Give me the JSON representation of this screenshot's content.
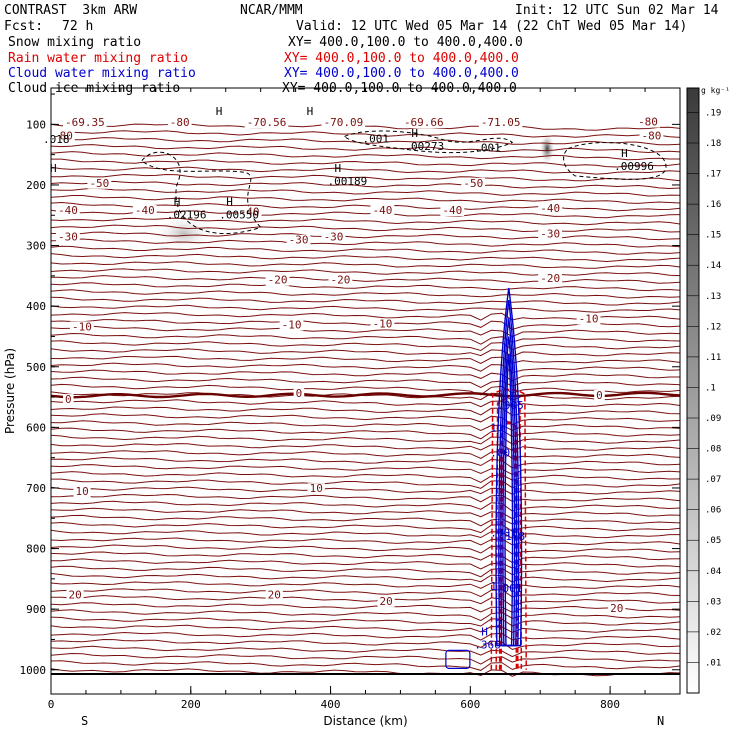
{
  "header": {
    "model": "CONTRAST  3km ARW",
    "center": "NCAR/MMM",
    "init": "Init: 12 UTC Sun 02 Mar 14",
    "fcst_label": "Fcst:",
    "fcst_value": "72 h",
    "valid": "Valid: 12 UTC Wed 05 Mar 14 (22 ChT Wed 05 Mar 14)"
  },
  "fields": [
    {
      "name": "Snow mixing ratio",
      "xy": "XY= 400.0,100.0 to 400.0,400.0",
      "color": "#000000"
    },
    {
      "name": "Rain water mixing ratio",
      "xy": "XY= 400.0,100.0 to 400.0,400.0",
      "color": "#dd0000"
    },
    {
      "name": "Cloud water mixing ratio",
      "xy": "XY= 400.0,100.0 to 400.0,400.0",
      "color": "#0000cc"
    },
    {
      "name": "Cloud ice mixing ratio",
      "xy": "XY= 400.0,100.0 to 400.0,400.0",
      "color": "#000000"
    }
  ],
  "colors": {
    "temperature": "#7a1010",
    "zero_isotherm": "#6a0000",
    "rain": "#dd0000",
    "cloud_water": "#0000cc",
    "ice": "#000000"
  },
  "chart_data": {
    "type": "contour-cross-section",
    "xlabel": "Distance (km)",
    "ylabel": "Pressure (hPa)",
    "xlim": [
      0,
      900
    ],
    "ylim": [
      1040,
      40
    ],
    "x_ticks": [
      0,
      200,
      400,
      600,
      800
    ],
    "y_ticks": [
      100,
      200,
      300,
      400,
      500,
      600,
      700,
      800,
      900,
      1000
    ],
    "end_labels": {
      "left": "S",
      "right": "N"
    },
    "colorbar": {
      "unit": "g kg⁻¹",
      "ticks": [
        ".01",
        ".02",
        ".03",
        ".04",
        ".05",
        ".06",
        ".07",
        ".08",
        ".09",
        ".1",
        ".11",
        ".12",
        ".13",
        ".14",
        ".15",
        ".16",
        ".17",
        ".18",
        ".19"
      ]
    },
    "temperature_labels": [
      {
        "x": 20,
        "p": 103,
        "text": "-69.35"
      },
      {
        "x": 170,
        "p": 103,
        "text": "-80"
      },
      {
        "x": 280,
        "p": 103,
        "text": "-70.56"
      },
      {
        "x": 390,
        "p": 103,
        "text": "-70.09"
      },
      {
        "x": 505,
        "p": 103,
        "text": "-69.66"
      },
      {
        "x": 615,
        "p": 103,
        "text": "-71.05"
      },
      {
        "x": 840,
        "p": 102,
        "text": "-80"
      },
      {
        "x": 0,
        "p": 125,
        "text": "-80"
      },
      {
        "x": 845,
        "p": 125,
        "text": "-80"
      },
      {
        "x": 55,
        "p": 203,
        "text": "-50"
      },
      {
        "x": 590,
        "p": 203,
        "text": "-50"
      },
      {
        "x": 10,
        "p": 248,
        "text": "-40"
      },
      {
        "x": 120,
        "p": 248,
        "text": "-40"
      },
      {
        "x": 270,
        "p": 250,
        "text": "-40"
      },
      {
        "x": 460,
        "p": 248,
        "text": "-40"
      },
      {
        "x": 560,
        "p": 248,
        "text": "-40"
      },
      {
        "x": 700,
        "p": 245,
        "text": "-40"
      },
      {
        "x": 10,
        "p": 292,
        "text": "-30"
      },
      {
        "x": 390,
        "p": 292,
        "text": "-30"
      },
      {
        "x": 700,
        "p": 287,
        "text": "-30"
      },
      {
        "x": 340,
        "p": 297,
        "text": "-30"
      },
      {
        "x": 400,
        "p": 363,
        "text": "-20"
      },
      {
        "x": 310,
        "p": 363,
        "text": "-20"
      },
      {
        "x": 700,
        "p": 360,
        "text": "-20"
      },
      {
        "x": 30,
        "p": 440,
        "text": "-10"
      },
      {
        "x": 330,
        "p": 437,
        "text": "-10"
      },
      {
        "x": 460,
        "p": 435,
        "text": "-10"
      },
      {
        "x": 755,
        "p": 427,
        "text": "-10"
      },
      {
        "x": 20,
        "p": 560,
        "text": "0"
      },
      {
        "x": 350,
        "p": 550,
        "text": "0"
      },
      {
        "x": 780,
        "p": 553,
        "text": "0"
      },
      {
        "x": 35,
        "p": 712,
        "text": "10"
      },
      {
        "x": 370,
        "p": 707,
        "text": "10"
      },
      {
        "x": 25,
        "p": 882,
        "text": "20"
      },
      {
        "x": 310,
        "p": 882,
        "text": "20"
      },
      {
        "x": 470,
        "p": 893,
        "text": "20"
      },
      {
        "x": 800,
        "p": 905,
        "text": "20"
      }
    ],
    "extrema": [
      {
        "x": 240,
        "p": 101,
        "kind": "H",
        "value": ""
      },
      {
        "x": 370,
        "p": 101,
        "kind": "H",
        "value": ""
      },
      {
        "x": 0,
        "p": 126,
        "kind": "",
        "value": ".018"
      },
      {
        "x": 460,
        "p": 125,
        "kind": "",
        "value": ".001"
      },
      {
        "x": 520,
        "p": 137,
        "kind": "H",
        "value": ".00273"
      },
      {
        "x": 620,
        "p": 140,
        "kind": "",
        "value": ".001"
      },
      {
        "x": 820,
        "p": 170,
        "kind": "H",
        "value": ".00996"
      },
      {
        "x": 410,
        "p": 195,
        "kind": "H",
        "value": ".00189"
      },
      {
        "x": 0,
        "p": 195,
        "kind": "H",
        "value": ""
      },
      {
        "x": 180,
        "p": 250,
        "kind": "H",
        "value": ".02196"
      },
      {
        "x": 255,
        "p": 250,
        "kind": "H",
        "value": ".00550"
      },
      {
        "x": 620,
        "p": 960,
        "kind": "H",
        "value": ".366"
      }
    ],
    "cloud_water_labels": [
      {
        "x": 650,
        "p": 570,
        "text": ".905"
      },
      {
        "x": 640,
        "p": 607,
        "text": "1"
      },
      {
        "x": 640,
        "p": 648,
        "text": ".001"
      },
      {
        "x": 640,
        "p": 780,
        "text": ".001"
      },
      {
        "x": 652,
        "p": 786,
        "text": ".178"
      },
      {
        "x": 648,
        "p": 872,
        "text": ".001"
      },
      {
        "x": 640,
        "p": 868,
        "text": "1"
      },
      {
        "x": 648,
        "p": 930,
        "text": "2"
      }
    ]
  }
}
